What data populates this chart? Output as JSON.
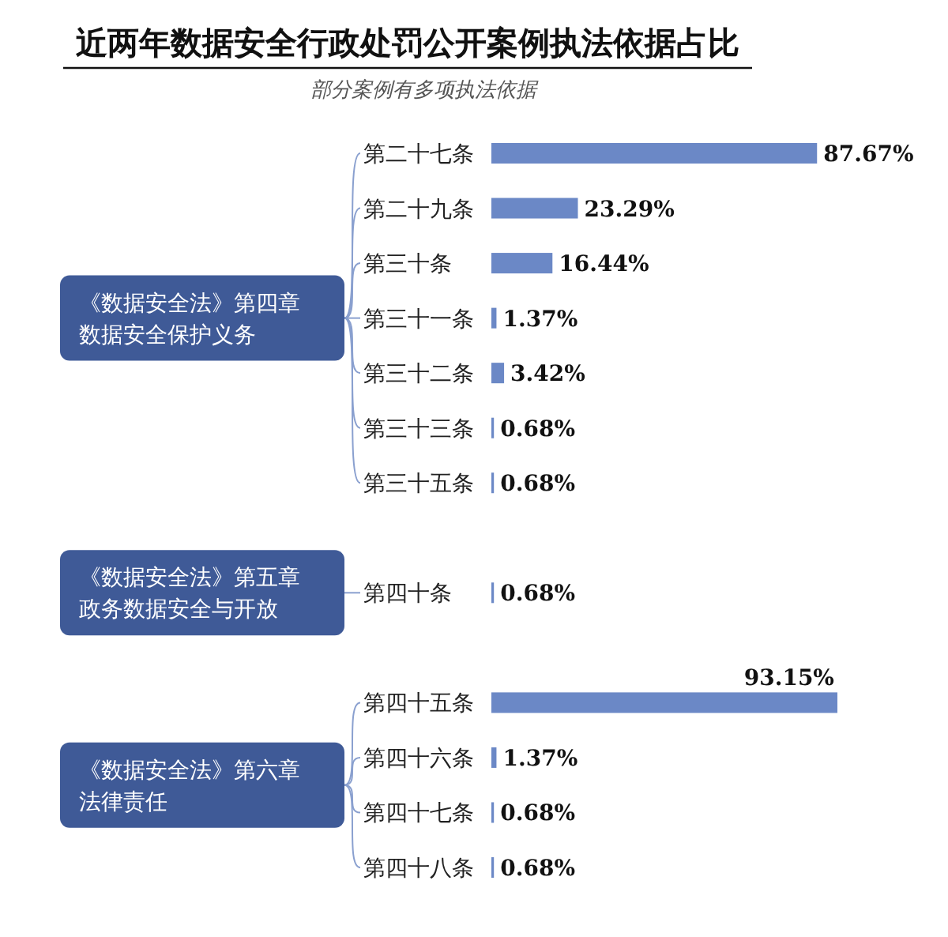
{
  "chart_data": {
    "type": "bar",
    "orientation": "horizontal",
    "title": "近两年数据安全行政处罚公开案例执法依据占比",
    "subtitle": "部分案例有多项执法依据",
    "categories": [
      "第二十七条",
      "第二十九条",
      "第三十条",
      "第三十一条",
      "第三十二条",
      "第三十三条",
      "第三十五条",
      null,
      "第四十条",
      null,
      "第四十五条",
      "第四十六条",
      "第四十七条",
      "第四十八条"
    ],
    "values": [
      87.67,
      23.29,
      16.44,
      1.37,
      3.42,
      0.68,
      0.68,
      null,
      0.68,
      null,
      93.15,
      1.37,
      0.68,
      0.68
    ],
    "value_labels": [
      "87.67%",
      "23.29%",
      "16.44%",
      "1.37%",
      "3.42%",
      "0.68%",
      "0.68%",
      null,
      "0.68%",
      null,
      "93.15%",
      "1.37%",
      "0.68%",
      "0.68%"
    ],
    "color": "#6b88c6",
    "annotations": [
      "《数据安全法》第四章数据安全保护义务",
      "《数据安全法》第五章政务数据安全与开放",
      "《数据安全法》第六章法律责任"
    ]
  }
}
